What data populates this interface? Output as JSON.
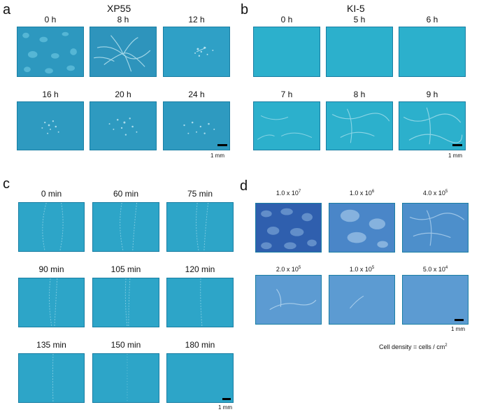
{
  "panel_a": {
    "letter": "a",
    "title": "XP55",
    "frames": [
      "0 h",
      "8 h",
      "12 h",
      "16 h",
      "20 h",
      "24 h"
    ],
    "scale_label": "1 mm",
    "tint": "#2e9ac0"
  },
  "panel_b": {
    "letter": "b",
    "title": "KI-5",
    "frames": [
      "0 h",
      "5 h",
      "6 h",
      "7 h",
      "8 h",
      "9 h"
    ],
    "scale_label": "1 mm",
    "tint": "#2cb0cc"
  },
  "panel_c": {
    "letter": "c",
    "frames": [
      "0 min",
      "60 min",
      "75 min",
      "90 min",
      "105 min",
      "120 min",
      "135 min",
      "150 min",
      "180 min"
    ],
    "scale_label": "1 mm",
    "tint": "#2da5c8"
  },
  "panel_d": {
    "letter": "d",
    "densities": [
      {
        "mantissa": "1.0 x 10",
        "exp": "7"
      },
      {
        "mantissa": "1.0 x 10",
        "exp": "6"
      },
      {
        "mantissa": "4.0 x 10",
        "exp": "5"
      },
      {
        "mantissa": "2.0 x 10",
        "exp": "5"
      },
      {
        "mantissa": "1.0 x 10",
        "exp": "5"
      },
      {
        "mantissa": "5.0 x 10",
        "exp": "4"
      }
    ],
    "scale_label": "1 mm",
    "note_text": "Cell density = cells / cm",
    "note_exp": "2",
    "tint": "#3b7fc4"
  }
}
